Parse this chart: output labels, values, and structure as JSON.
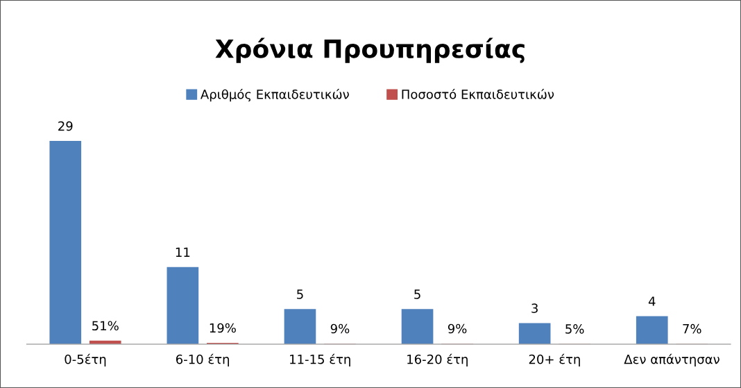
{
  "chart_data": {
    "type": "bar",
    "title": "Χρόνια Προυπηρεσίας",
    "categories": [
      "0-5έτη",
      "6-10 έτη",
      "11-15 έτη",
      "16-20 έτη",
      "20+ έτη",
      "Δεν απάντησαν"
    ],
    "series": [
      {
        "name": "Αριθμός Εκπαιδευτικών",
        "color": "#4f81bd",
        "values": [
          29,
          11,
          5,
          5,
          3,
          4
        ],
        "value_labels": [
          "29",
          "11",
          "5",
          "5",
          "3",
          "4"
        ]
      },
      {
        "name": "Ποσοστό Εκπαιδευτικών",
        "color": "#c0504d",
        "values": [
          0.51,
          0.19,
          0.09,
          0.09,
          0.05,
          0.07
        ],
        "value_labels": [
          "51%",
          "19%",
          "9%",
          "9%",
          "5%",
          "7%"
        ]
      }
    ],
    "legend": "top",
    "grid": false,
    "tick_labels": "x"
  }
}
